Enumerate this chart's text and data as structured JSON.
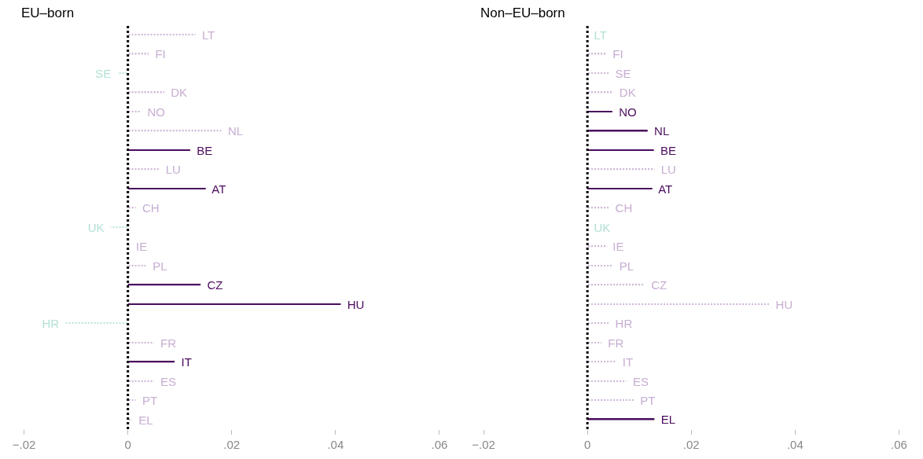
{
  "chart_data": [
    {
      "type": "bar",
      "orientation": "horizontal",
      "title": "EU–born",
      "tick_labels": "x",
      "categories": [
        "LT",
        "FI",
        "SE",
        "DK",
        "NO",
        "NL",
        "BE",
        "LU",
        "AT",
        "CH",
        "UK",
        "IE",
        "PL",
        "CZ",
        "HU",
        "HR",
        "FR",
        "IT",
        "ES",
        "PT",
        "EL"
      ],
      "series": [
        {
          "color": "#4b0c5e",
          "line_style": "solid",
          "values": [
            null,
            null,
            null,
            null,
            null,
            null,
            0.012,
            null,
            0.015,
            null,
            null,
            null,
            null,
            0.014,
            0.041,
            null,
            null,
            0.009,
            null,
            null,
            null
          ]
        },
        {
          "color": "#c8aed2",
          "line_style": "dotted",
          "values": [
            0.013,
            0.004,
            null,
            0.007,
            0.0025,
            0.018,
            null,
            0.006,
            null,
            0.0015,
            null,
            0.0003,
            0.0035,
            null,
            null,
            null,
            0.005,
            null,
            0.005,
            0.0015,
            0.0008
          ]
        },
        {
          "color": "#b3e0d5",
          "line_style": "dotted",
          "values": [
            null,
            null,
            -0.002,
            null,
            null,
            null,
            null,
            null,
            null,
            null,
            -0.0033,
            null,
            null,
            null,
            null,
            -0.012,
            null,
            null,
            null,
            null,
            null
          ]
        }
      ],
      "xlim": [
        -0.02,
        0.06
      ],
      "xticks": [
        {
          "value": -0.02,
          "label": "−.02"
        },
        0,
        {
          "value": 0.02,
          "label": ".02"
        },
        {
          "value": 0.04,
          "label": ".04"
        },
        {
          "value": 0.06,
          "label": ".06"
        }
      ],
      "ref_lines": [
        {
          "axis": "x",
          "value": 0,
          "label": null,
          "color": "#000000",
          "line_style": "dotted"
        }
      ]
    },
    {
      "type": "bar",
      "orientation": "horizontal",
      "title": "Non–EU–born",
      "tick_labels": "x",
      "categories": [
        "LT",
        "FI",
        "SE",
        "DK",
        "NO",
        "NL",
        "BE",
        "LU",
        "AT",
        "CH",
        "UK",
        "IE",
        "PL",
        "CZ",
        "HU",
        "HR",
        "FR",
        "IT",
        "ES",
        "PT",
        "EL"
      ],
      "series": [
        {
          "color": "#4b0c5e",
          "line_style": "solid",
          "values": [
            null,
            null,
            null,
            null,
            0.0048,
            0.0116,
            0.0128,
            null,
            0.0125,
            null,
            null,
            null,
            null,
            null,
            null,
            null,
            null,
            null,
            null,
            null,
            0.0129
          ]
        },
        {
          "color": "#c8aed2",
          "line_style": "dotted",
          "values": [
            null,
            0.0036,
            0.0041,
            0.0049,
            null,
            null,
            null,
            0.0129,
            null,
            0.0041,
            null,
            0.0036,
            0.0049,
            0.011,
            0.035,
            0.0041,
            0.0027,
            0.0055,
            0.0075,
            0.0089,
            null
          ]
        },
        {
          "color": "#b3e0d5",
          "line_style": "dotted",
          "values": [
            0,
            null,
            null,
            null,
            null,
            null,
            null,
            null,
            null,
            null,
            0,
            null,
            null,
            null,
            null,
            null,
            null,
            null,
            null,
            null,
            null
          ]
        }
      ],
      "xlim": [
        -0.02,
        0.06
      ],
      "xticks": [
        {
          "value": -0.02,
          "label": "−.02"
        },
        0,
        {
          "value": 0.02,
          "label": ".02"
        },
        {
          "value": 0.04,
          "label": ".04"
        },
        {
          "value": 0.06,
          "label": ".06"
        }
      ],
      "ref_lines": [
        {
          "axis": "x",
          "value": 0,
          "label": null,
          "color": "#000000",
          "line_style": "dotted"
        }
      ]
    }
  ]
}
